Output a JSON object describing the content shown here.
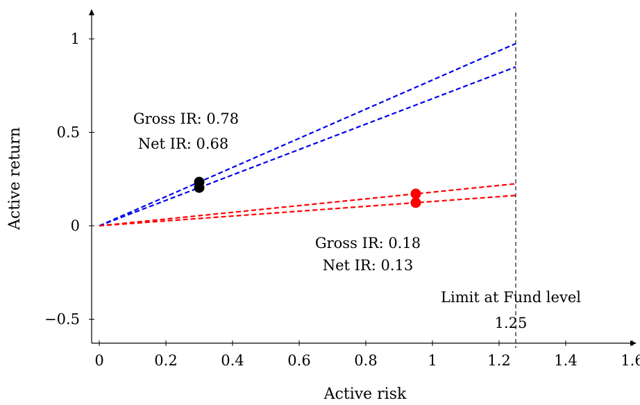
{
  "chart_data": {
    "type": "line",
    "title": "",
    "xlabel": "Active risk",
    "ylabel": "Active return",
    "xlim": [
      -0.02,
      1.63
    ],
    "ylim": [
      -0.66,
      1.12
    ],
    "grid": false,
    "x_ticks": [
      0,
      0.2,
      0.4,
      0.6,
      0.8,
      1,
      1.2,
      1.4,
      1.6
    ],
    "x_tick_labels": [
      "0",
      "0.2",
      "0.4",
      "0.6",
      "0.8",
      "1",
      "1.2",
      "1.4",
      "1.6"
    ],
    "y_ticks": [
      -0.5,
      0,
      0.5,
      1
    ],
    "y_tick_labels": [
      "−0.5",
      "0",
      "0.5",
      "1"
    ],
    "series": [
      {
        "color": "#0000ee",
        "dash": true,
        "x": [
          0,
          1.25
        ],
        "y": [
          0,
          0.975
        ]
      },
      {
        "color": "#0000ee",
        "dash": true,
        "x": [
          0,
          1.25
        ],
        "y": [
          0,
          0.85
        ]
      },
      {
        "color": "#ff0000",
        "dash": true,
        "x": [
          0,
          1.25
        ],
        "y": [
          0,
          0.225
        ]
      },
      {
        "color": "#ff0000",
        "dash": true,
        "x": [
          0,
          1.25
        ],
        "y": [
          0,
          0.1625
        ]
      }
    ],
    "points": [
      {
        "x": 0.3,
        "y": 0.234,
        "color": "#000000"
      },
      {
        "x": 0.3,
        "y": 0.204,
        "color": "#000000"
      },
      {
        "x": 0.95,
        "y": 0.171,
        "color": "#ff0000"
      },
      {
        "x": 0.95,
        "y": 0.1235,
        "color": "#ff0000"
      }
    ],
    "vertical_line": {
      "x": 1.25,
      "label": "Limit at Fund level",
      "value_label": "1.25"
    },
    "annotations": [
      {
        "line1": "Gross IR: 0.78",
        "line2": "Net IR: 0.68"
      },
      {
        "line1": "Gross IR: 0.18",
        "line2": "Net IR: 0.13"
      }
    ]
  }
}
